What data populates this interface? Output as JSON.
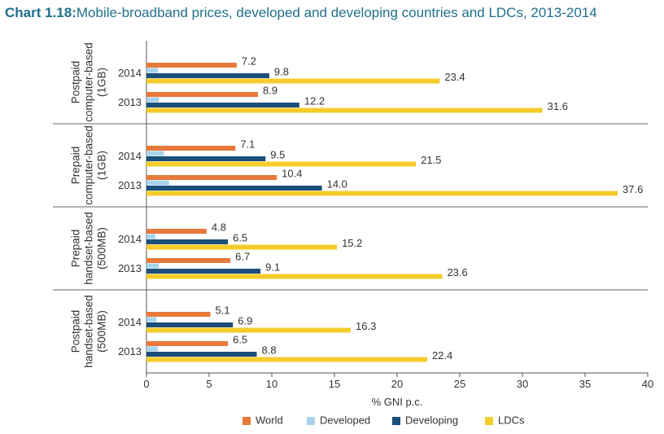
{
  "title_number": "Chart 1.18:",
  "title_text": "Mobile-broadband prices, developed and developing countries and LDCs, 2013-2014",
  "chart_data": {
    "type": "bar",
    "orientation": "horizontal",
    "xlabel": "% GNI p.c.",
    "xlim": [
      0,
      40
    ],
    "xticks": [
      0,
      5,
      10,
      15,
      20,
      25,
      30,
      35,
      40
    ],
    "legend_position": "bottom",
    "series_names": [
      "World",
      "Developed",
      "Developing",
      "LDCs"
    ],
    "colors": {
      "World": "#e8793a",
      "Developed": "#a7d3ec",
      "Developing": "#1b4f7a",
      "LDCs": "#f5cc2b"
    },
    "groups": [
      {
        "label_lines": [
          "Postpaid",
          "computer-based",
          "(1GB)"
        ],
        "years": [
          {
            "year": "2014",
            "World": 7.2,
            "Developed": 0.9,
            "Developing": 9.8,
            "LDCs": 23.4
          },
          {
            "year": "2013",
            "World": 8.9,
            "Developed": 1.0,
            "Developing": 12.2,
            "LDCs": 31.6
          }
        ]
      },
      {
        "label_lines": [
          "Prepaid",
          "computer-based",
          "(1GB)"
        ],
        "years": [
          {
            "year": "2014",
            "World": 7.1,
            "Developed": 1.4,
            "Developing": 9.5,
            "LDCs": 21.5
          },
          {
            "year": "2013",
            "World": 10.4,
            "Developed": 1.8,
            "Developing": 14.0,
            "LDCs": 37.6
          }
        ]
      },
      {
        "label_lines": [
          "Prepaid",
          "handset-based",
          "(500MB)"
        ],
        "years": [
          {
            "year": "2014",
            "World": 4.8,
            "Developed": 0.7,
            "Developing": 6.5,
            "LDCs": 15.2
          },
          {
            "year": "2013",
            "World": 6.7,
            "Developed": 1.0,
            "Developing": 9.1,
            "LDCs": 23.6
          }
        ]
      },
      {
        "label_lines": [
          "Postpaid",
          "handset-based",
          "(500MB)"
        ],
        "years": [
          {
            "year": "2014",
            "World": 5.1,
            "Developed": 0.8,
            "Developing": 6.9,
            "LDCs": 16.3
          },
          {
            "year": "2013",
            "World": 6.5,
            "Developed": 0.9,
            "Developing": 8.8,
            "LDCs": 22.4
          }
        ]
      }
    ]
  }
}
